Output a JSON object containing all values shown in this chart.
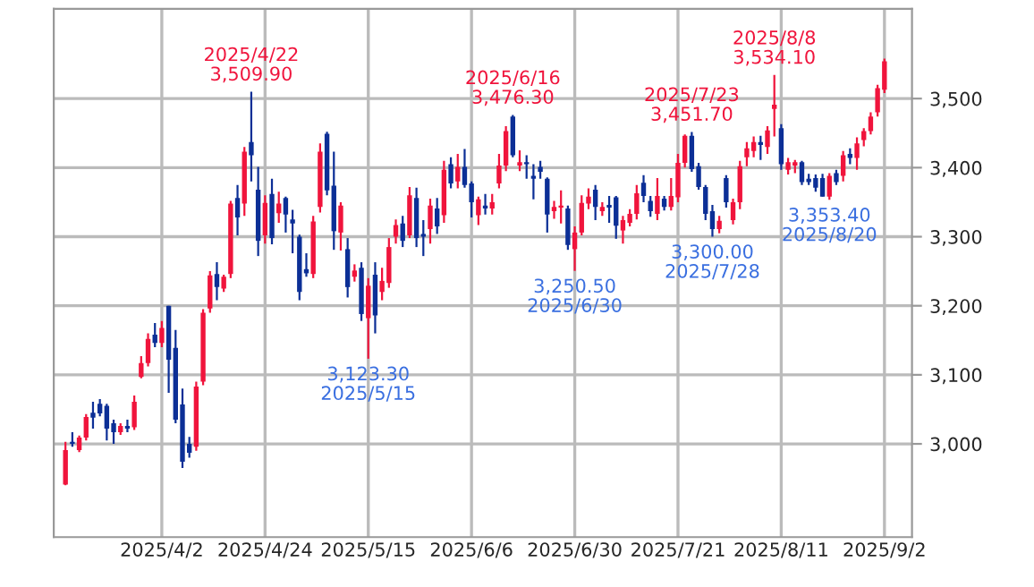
{
  "chart_data": {
    "type": "candlestick",
    "categories": [
      null,
      null,
      null,
      null,
      null,
      null,
      null,
      null,
      null,
      null,
      null,
      null,
      null,
      null,
      "2025/4/2",
      null,
      null,
      null,
      null,
      null,
      null,
      null,
      null,
      null,
      null,
      null,
      null,
      null,
      null,
      "2025/4/24",
      null,
      null,
      null,
      null,
      null,
      null,
      null,
      null,
      null,
      null,
      null,
      null,
      null,
      null,
      "2025/5/15",
      null,
      null,
      null,
      null,
      null,
      null,
      null,
      null,
      null,
      null,
      null,
      null,
      null,
      null,
      "2025/6/6",
      null,
      null,
      null,
      null,
      null,
      null,
      null,
      null,
      null,
      null,
      null,
      null,
      null,
      null,
      "2025/6/30",
      null,
      null,
      null,
      null,
      null,
      null,
      null,
      null,
      null,
      null,
      null,
      null,
      null,
      null,
      "2025/7/21",
      null,
      null,
      null,
      null,
      null,
      null,
      null,
      null,
      null,
      null,
      null,
      null,
      null,
      null,
      "2025/8/11",
      null,
      null,
      null,
      null,
      null,
      null,
      null,
      null,
      null,
      null,
      null,
      null,
      null,
      null,
      "2025/9/2"
    ],
    "ohlc": [
      [
        2941,
        3003,
        2940,
        2991
      ],
      [
        3003,
        3017,
        2996,
        3000
      ],
      [
        2991,
        3012,
        2988,
        3009
      ],
      [
        3009,
        3043,
        3005,
        3039
      ],
      [
        3045,
        3061,
        3022,
        3038
      ],
      [
        3058,
        3065,
        3040,
        3044
      ],
      [
        3055,
        3058,
        3005,
        3022
      ],
      [
        3030,
        3035,
        3000,
        3017
      ],
      [
        3017,
        3030,
        3013,
        3026
      ],
      [
        3026,
        3035,
        3017,
        3022
      ],
      [
        3024,
        3070,
        3020,
        3061
      ],
      [
        3097,
        3127,
        3095,
        3117
      ],
      [
        3117,
        3160,
        3112,
        3152
      ],
      [
        3158,
        3175,
        3140,
        3146
      ],
      [
        3146,
        3178,
        3140,
        3168
      ],
      [
        3200,
        3200,
        3074,
        3122
      ],
      [
        3139,
        3165,
        3030,
        3035
      ],
      [
        3057,
        3080,
        2965,
        2974
      ],
      [
        3000,
        3010,
        2980,
        2987
      ],
      [
        2996,
        3090,
        2990,
        3083
      ],
      [
        3090,
        3195,
        3085,
        3190
      ],
      [
        3196,
        3250,
        3190,
        3244
      ],
      [
        3246,
        3263,
        3208,
        3227
      ],
      [
        3225,
        3245,
        3220,
        3242
      ],
      [
        3246,
        3352,
        3240,
        3348
      ],
      [
        3356,
        3375,
        3302,
        3328
      ],
      [
        3348,
        3430,
        3330,
        3423
      ],
      [
        3437,
        3509.9,
        3380,
        3418
      ],
      [
        3368,
        3401,
        3272,
        3294
      ],
      [
        3302,
        3360,
        3290,
        3349
      ],
      [
        3362,
        3384,
        3289,
        3298
      ],
      [
        3334,
        3365,
        3320,
        3348
      ],
      [
        3356,
        3358,
        3306,
        3332
      ],
      [
        3325,
        3339,
        3276,
        3319
      ],
      [
        3300,
        3303,
        3208,
        3220
      ],
      [
        3253,
        3276,
        3242,
        3247
      ],
      [
        3246,
        3330,
        3240,
        3322
      ],
      [
        3343,
        3435,
        3335,
        3423
      ],
      [
        3449,
        3452,
        3360,
        3367
      ],
      [
        3374,
        3423,
        3281,
        3308
      ],
      [
        3306,
        3350,
        3280,
        3345
      ],
      [
        3282,
        3298,
        3212,
        3227
      ],
      [
        3242,
        3260,
        3235,
        3251
      ],
      [
        3255,
        3263,
        3178,
        3188
      ],
      [
        3182,
        3240,
        3123.3,
        3229
      ],
      [
        3245,
        3263,
        3160,
        3186
      ],
      [
        3220,
        3255,
        3208,
        3236
      ],
      [
        3233,
        3298,
        3226,
        3285
      ],
      [
        3300,
        3325,
        3290,
        3317
      ],
      [
        3319,
        3330,
        3285,
        3294
      ],
      [
        3302,
        3372,
        3298,
        3360
      ],
      [
        3356,
        3371,
        3285,
        3298
      ],
      [
        3304,
        3324,
        3272,
        3300
      ],
      [
        3311,
        3355,
        3290,
        3345
      ],
      [
        3341,
        3356,
        3304,
        3315
      ],
      [
        3331,
        3410,
        3320,
        3397
      ],
      [
        3405,
        3415,
        3370,
        3377
      ],
      [
        3380,
        3420,
        3370,
        3401
      ],
      [
        3401,
        3427,
        3371,
        3375
      ],
      [
        3377,
        3380,
        3328,
        3350
      ],
      [
        3331,
        3358,
        3317,
        3354
      ],
      [
        3345,
        3362,
        3332,
        3341
      ],
      [
        3341,
        3362,
        3332,
        3350
      ],
      [
        3377,
        3420,
        3370,
        3403
      ],
      [
        3403,
        3460,
        3395,
        3453
      ],
      [
        3474,
        3476.3,
        3415,
        3418
      ],
      [
        3403,
        3425,
        3395,
        3408
      ],
      [
        3408,
        3418,
        3384,
        3405
      ],
      [
        3388,
        3405,
        3354,
        3384
      ],
      [
        3401,
        3410,
        3384,
        3394
      ],
      [
        3384,
        3386,
        3306,
        3332
      ],
      [
        3337,
        3352,
        3326,
        3343
      ],
      [
        3342,
        3367,
        3319,
        3345
      ],
      [
        3341,
        3345,
        3281,
        3288
      ],
      [
        3282,
        3315,
        3250.5,
        3306
      ],
      [
        3306,
        3360,
        3302,
        3349
      ],
      [
        3348,
        3370,
        3340,
        3358
      ],
      [
        3368,
        3375,
        3324,
        3343
      ],
      [
        3337,
        3350,
        3330,
        3343
      ],
      [
        3346,
        3359,
        3320,
        3342
      ],
      [
        3357,
        3359,
        3297,
        3316
      ],
      [
        3309,
        3330,
        3290,
        3324
      ],
      [
        3320,
        3340,
        3315,
        3333
      ],
      [
        3333,
        3375,
        3325,
        3363
      ],
      [
        3378,
        3389,
        3350,
        3359
      ],
      [
        3352,
        3359,
        3329,
        3337
      ],
      [
        3333,
        3385,
        3324,
        3359
      ],
      [
        3355,
        3359,
        3338,
        3343
      ],
      [
        3343,
        3385,
        3338,
        3359
      ],
      [
        3357,
        3420,
        3350,
        3407
      ],
      [
        3407,
        3448,
        3400,
        3446
      ],
      [
        3446,
        3451.7,
        3394,
        3398
      ],
      [
        3402,
        3407,
        3368,
        3372
      ],
      [
        3372,
        3375,
        3324,
        3333
      ],
      [
        3337,
        3346,
        3300,
        3311
      ],
      [
        3311,
        3330,
        3305,
        3323
      ],
      [
        3385,
        3389,
        3342,
        3350
      ],
      [
        3324,
        3355,
        3318,
        3350
      ],
      [
        3350,
        3410,
        3340,
        3402
      ],
      [
        3415,
        3437,
        3402,
        3428
      ],
      [
        3424,
        3445,
        3415,
        3437
      ],
      [
        3437,
        3446,
        3411,
        3433
      ],
      [
        3430,
        3460,
        3420,
        3454
      ],
      [
        3485,
        3534.1,
        3445,
        3491
      ],
      [
        3457,
        3463,
        3397,
        3405
      ],
      [
        3397,
        3414,
        3390,
        3408
      ],
      [
        3403,
        3411,
        3392,
        3408
      ],
      [
        3408,
        3410,
        3375,
        3379
      ],
      [
        3384,
        3391,
        3375,
        3379
      ],
      [
        3385,
        3390,
        3365,
        3371
      ],
      [
        3385,
        3391,
        3358,
        3358
      ],
      [
        3358,
        3392,
        3353.4,
        3388
      ],
      [
        3392,
        3397,
        3375,
        3379
      ],
      [
        3388,
        3424,
        3380,
        3418
      ],
      [
        3420,
        3428,
        3405,
        3414
      ],
      [
        3414,
        3444,
        3397,
        3435
      ],
      [
        3440,
        3457,
        3431,
        3453
      ],
      [
        3453,
        3480,
        3448,
        3474
      ],
      [
        3480,
        3520,
        3474,
        3515
      ],
      [
        3513,
        3558,
        3508,
        3554
      ]
    ],
    "colors": [
      "#f0143c",
      "#0c2f96",
      "#f0143c",
      "#f0143c",
      "#0c2f96",
      "#0c2f96",
      "#0c2f96",
      "#0c2f96",
      "#f0143c",
      "#0c2f96",
      "#f0143c",
      "#f0143c",
      "#f0143c",
      "#0c2f96",
      "#f0143c",
      "#0c2f96",
      "#0c2f96",
      "#0c2f96",
      "#0c2f96",
      "#f0143c",
      "#f0143c",
      "#f0143c",
      "#0c2f96",
      "#f0143c",
      "#f0143c",
      "#0c2f96",
      "#f0143c",
      "#0c2f96",
      "#0c2f96",
      "#f0143c",
      "#0c2f96",
      "#f0143c",
      "#0c2f96",
      "#0c2f96",
      "#0c2f96",
      "#0c2f96",
      "#f0143c",
      "#f0143c",
      "#0c2f96",
      "#0c2f96",
      "#f0143c",
      "#0c2f96",
      "#f0143c",
      "#0c2f96",
      "#f0143c",
      "#0c2f96",
      "#f0143c",
      "#f0143c",
      "#f0143c",
      "#0c2f96",
      "#f0143c",
      "#0c2f96",
      "#0c2f96",
      "#f0143c",
      "#0c2f96",
      "#f0143c",
      "#0c2f96",
      "#f0143c",
      "#0c2f96",
      "#0c2f96",
      "#f0143c",
      "#0c2f96",
      "#f0143c",
      "#f0143c",
      "#f0143c",
      "#0c2f96",
      "#f0143c",
      "#0c2f96",
      "#0c2f96",
      "#0c2f96",
      "#0c2f96",
      "#f0143c",
      "#f0143c",
      "#0c2f96",
      "#f0143c",
      "#f0143c",
      "#f0143c",
      "#0c2f96",
      "#f0143c",
      "#0c2f96",
      "#0c2f96",
      "#f0143c",
      "#f0143c",
      "#f0143c",
      "#0c2f96",
      "#0c2f96",
      "#f0143c",
      "#0c2f96",
      "#f0143c",
      "#f0143c",
      "#f0143c",
      "#0c2f96",
      "#0c2f96",
      "#0c2f96",
      "#0c2f96",
      "#f0143c",
      "#0c2f96",
      "#f0143c",
      "#f0143c",
      "#f0143c",
      "#f0143c",
      "#0c2f96",
      "#f0143c",
      "#f0143c",
      "#0c2f96",
      "#f0143c",
      "#f0143c",
      "#0c2f96",
      "#0c2f96",
      "#0c2f96",
      "#0c2f96",
      "#f0143c",
      "#0c2f96",
      "#f0143c",
      "#0c2f96",
      "#f0143c",
      "#f0143c",
      "#f0143c",
      "#f0143c",
      "#f0143c"
    ],
    "ylim": [
      2865,
      3630
    ],
    "yticks": [
      {
        "value": 3000,
        "label": "3,000"
      },
      {
        "value": 3100,
        "label": "3,100"
      },
      {
        "value": 3200,
        "label": "3,200"
      },
      {
        "value": 3300,
        "label": "3,300"
      },
      {
        "value": 3400,
        "label": "3,400"
      },
      {
        "value": 3500,
        "label": "3,500"
      }
    ],
    "grid": true,
    "annotations": [
      {
        "text": "2025/4/22\n3,509.90",
        "y": 3509.9
      },
      {
        "text": "3,123.30\n2025/5/15",
        "y": 3123.3
      },
      {
        "text": "2025/6/16\n3,476.30",
        "y": 3476.3
      },
      {
        "text": "3,250.50\n2025/6/30",
        "y": 3250.5
      },
      {
        "text": "2025/7/23\n3,451.70",
        "y": 3451.7
      },
      {
        "text": "3,300.00\n2025/7/28",
        "y": 3300
      },
      {
        "text": "2025/8/8\n3,534.10",
        "y": 3534.1
      },
      {
        "text": "3,353.40\n2025/8/20",
        "y": 3353.4
      }
    ]
  }
}
